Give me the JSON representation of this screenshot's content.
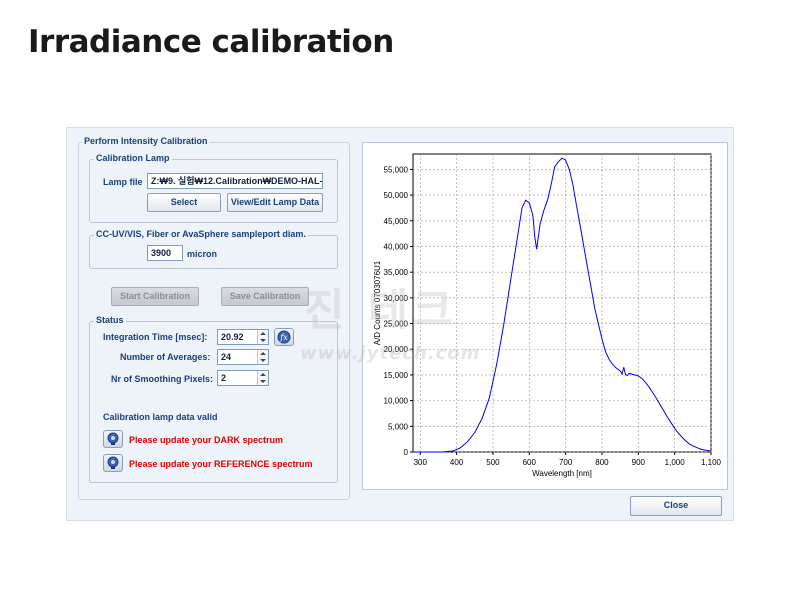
{
  "page_title": "Irradiance calibration",
  "dialog": {
    "main_group_title": "Perform Intensity Calibration",
    "calibration_lamp": {
      "group_title": "Calibration Lamp",
      "lamp_file_label": "Lamp file",
      "lamp_file_value": "Z:₩9. 실험₩12.Calibration₩DEMO-HAL-1(",
      "select_button": "Select",
      "view_edit_button": "View/Edit Lamp Data"
    },
    "sampleport": {
      "group_title": "CC-UV/VIS, Fiber or AvaSphere sampleport diam.",
      "value": "3900",
      "unit": "micron"
    },
    "start_calibration_button": "Start Calibration",
    "save_calibration_button": "Save Calibration",
    "status": {
      "group_title": "Status",
      "integration_time_label": "Integration Time [msec]:",
      "integration_time_value": "20.92",
      "averages_label": "Number of Averages:",
      "averages_value": "24",
      "smoothing_label": "Nr of Smoothing Pixels:",
      "smoothing_value": "2",
      "lamp_valid_text": "Calibration lamp data valid",
      "dark_message": "Please update your DARK spectrum",
      "reference_message": "Please update your REFERENCE spectrum"
    },
    "close_button": "Close"
  },
  "watermark": {
    "text": "진 테크",
    "url": "www.jytech.com"
  },
  "chart_data": {
    "type": "line",
    "xlabel": "Wavelength [nm]",
    "ylabel": "A/D Counts 0703076U1",
    "xlim": [
      280,
      1100
    ],
    "ylim": [
      0,
      58000
    ],
    "x_ticks": [
      300,
      400,
      500,
      600,
      700,
      800,
      900,
      1000,
      1100
    ],
    "x_tick_labels": [
      "300",
      "400",
      "500",
      "600",
      "700",
      "800",
      "900",
      "1,000",
      "1,100"
    ],
    "y_ticks": [
      0,
      5000,
      10000,
      15000,
      20000,
      25000,
      30000,
      35000,
      40000,
      45000,
      50000,
      55000
    ],
    "y_tick_labels": [
      "0",
      "5,000",
      "10,000",
      "15,000",
      "20,000",
      "25,000",
      "30,000",
      "35,000",
      "40,000",
      "45,000",
      "50,000",
      "55,000"
    ],
    "grid": true,
    "line_color": "#0000ee",
    "series": [
      {
        "x": [
          280,
          360,
          390,
          410,
          430,
          450,
          470,
          490,
          510,
          530,
          550,
          570,
          580,
          590,
          600,
          610,
          615,
          620,
          625,
          630,
          640,
          650,
          660,
          670,
          680,
          690,
          700,
          710,
          720,
          730,
          740,
          750,
          760,
          770,
          780,
          790,
          800,
          810,
          820,
          830,
          840,
          850,
          855,
          860,
          865,
          870,
          875,
          880,
          890,
          900,
          910,
          920,
          930,
          940,
          950,
          960,
          970,
          980,
          990,
          1000,
          1010,
          1020,
          1030,
          1040,
          1050,
          1060,
          1070,
          1080,
          1090,
          1100
        ],
        "y": [
          0,
          0,
          200,
          800,
          2000,
          3800,
          6500,
          10500,
          17000,
          25000,
          34000,
          43000,
          47500,
          49000,
          48500,
          46000,
          42000,
          39500,
          42000,
          44500,
          47000,
          49000,
          52000,
          55500,
          56500,
          57200,
          56800,
          55000,
          52000,
          48000,
          44000,
          40000,
          36000,
          32000,
          28000,
          25000,
          22000,
          19500,
          18000,
          17000,
          16300,
          15800,
          15200,
          16500,
          15000,
          14900,
          15300,
          15200,
          15000,
          14800,
          14300,
          13500,
          12600,
          11500,
          10400,
          9200,
          8000,
          6800,
          5700,
          4600,
          3700,
          2900,
          2200,
          1600,
          1200,
          900,
          600,
          400,
          300,
          200
        ]
      }
    ]
  }
}
